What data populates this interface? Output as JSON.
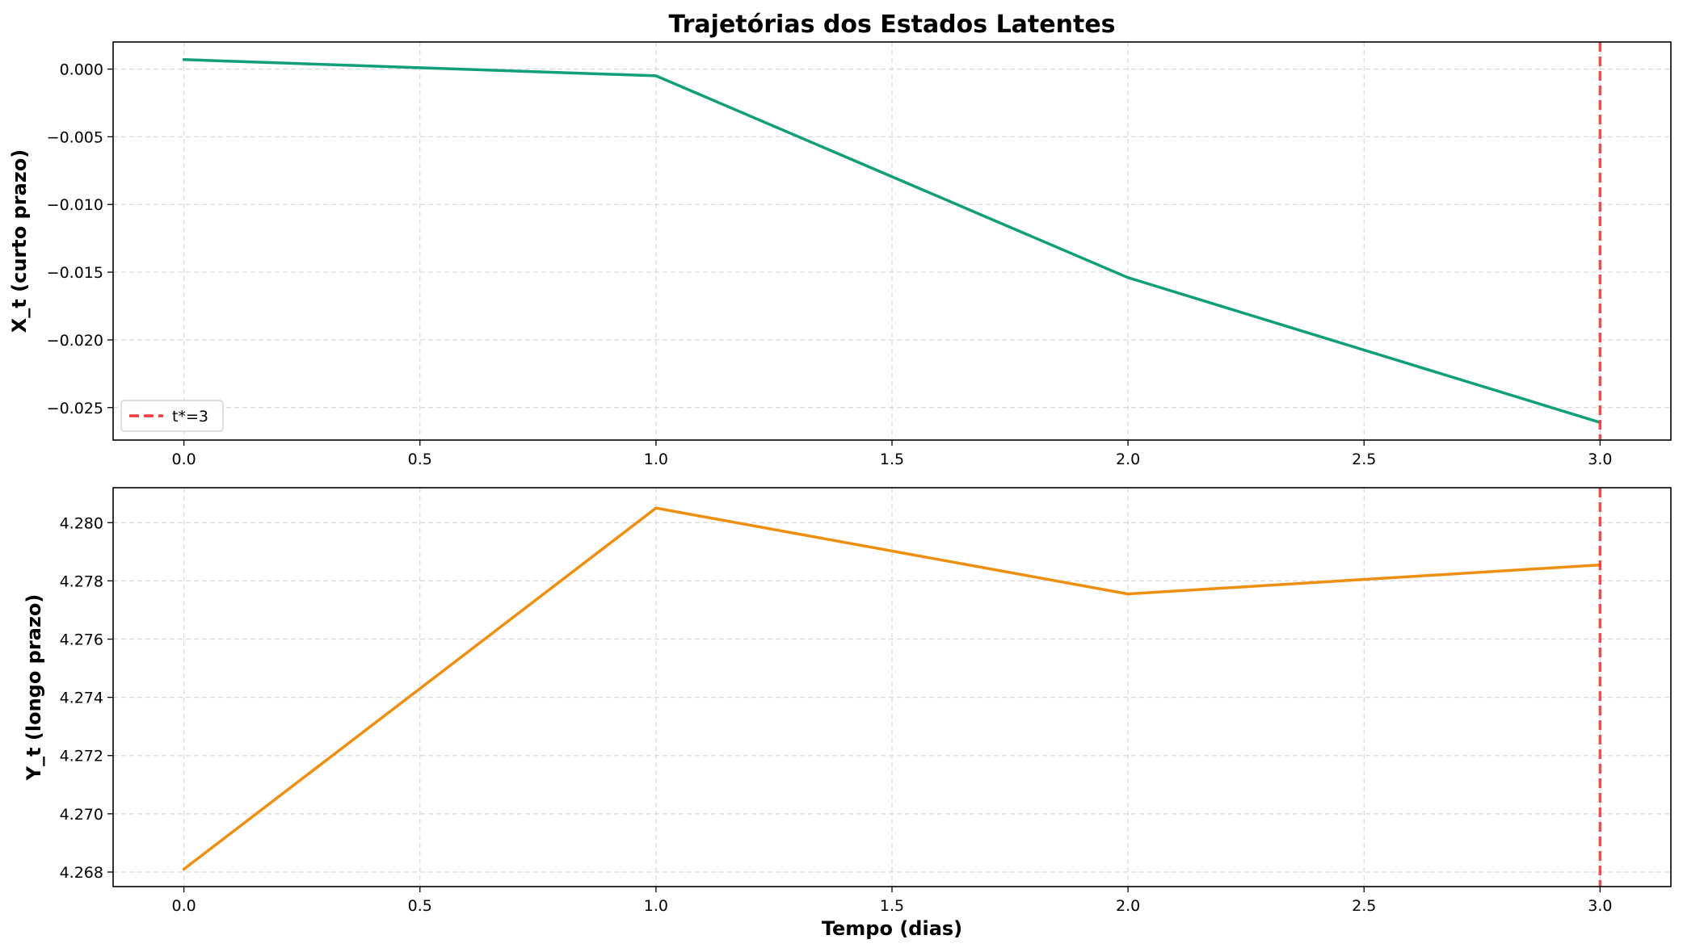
{
  "title": "Trajetórias dos Estados Latentes",
  "chart_data": [
    {
      "type": "line",
      "title": "",
      "xlabel": "",
      "ylabel": "X_t (curto prazo)",
      "xlim": [
        -0.15,
        3.15
      ],
      "ylim": [
        -0.0274,
        0.002
      ],
      "xticks": [
        0.0,
        0.5,
        1.0,
        1.5,
        2.0,
        2.5,
        3.0
      ],
      "xtick_labels": [
        "0.0",
        "0.5",
        "1.0",
        "1.5",
        "2.0",
        "2.5",
        "3.0"
      ],
      "yticks": [
        0.0,
        -0.005,
        -0.01,
        -0.015,
        -0.02,
        -0.025
      ],
      "ytick_labels": [
        "0.000",
        "−0.005",
        "−0.010",
        "−0.015",
        "−0.020",
        "−0.025"
      ],
      "grid": true,
      "series": [
        {
          "x": [
            0,
            1,
            2,
            3
          ],
          "y": [
            0.0007,
            -0.0005,
            -0.0154,
            -0.0261
          ],
          "color": "#119f7a"
        }
      ],
      "vline": {
        "x": 3,
        "color": "#f03c3c",
        "style": "dashed",
        "label": "t*=3"
      },
      "legend": {
        "position": "lower-left",
        "entries": [
          "t*=3"
        ]
      }
    },
    {
      "type": "line",
      "title": "",
      "xlabel": "Tempo (dias)",
      "ylabel": "Y_t (longo prazo)",
      "xlim": [
        -0.15,
        3.15
      ],
      "ylim": [
        4.2675,
        4.2812
      ],
      "xticks": [
        0.0,
        0.5,
        1.0,
        1.5,
        2.0,
        2.5,
        3.0
      ],
      "xtick_labels": [
        "0.0",
        "0.5",
        "1.0",
        "1.5",
        "2.0",
        "2.5",
        "3.0"
      ],
      "yticks": [
        4.268,
        4.27,
        4.272,
        4.274,
        4.276,
        4.278,
        4.28
      ],
      "ytick_labels": [
        "4.268",
        "4.270",
        "4.272",
        "4.274",
        "4.276",
        "4.278",
        "4.280"
      ],
      "grid": true,
      "series": [
        {
          "x": [
            0,
            1,
            2,
            3
          ],
          "y": [
            4.2681,
            4.2805,
            4.27755,
            4.27855
          ],
          "color": "#ee8f12"
        }
      ],
      "vline": {
        "x": 3,
        "color": "#f03c3c",
        "style": "dashed"
      }
    }
  ]
}
